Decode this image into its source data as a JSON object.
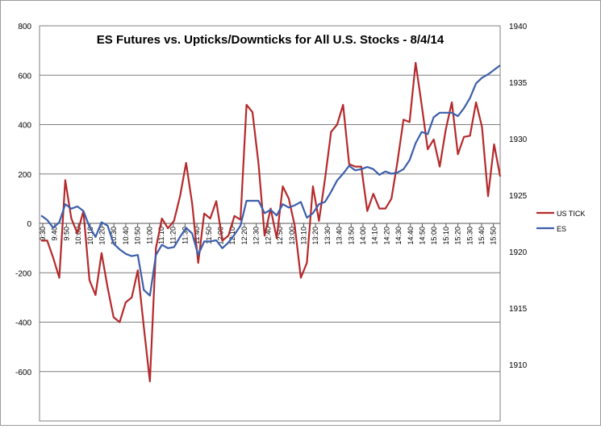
{
  "chart_data": {
    "type": "line",
    "title": "ES Futures vs. Upticks/Downticks for All U.S. Stocks - 8/4/14",
    "xlabel": "",
    "ylabel": "",
    "ylabel_right": "",
    "legend_position": "right",
    "grid": "horizontal",
    "y_left": {
      "min": -800,
      "max": 800,
      "step": 200
    },
    "y_right": {
      "min": 1905,
      "max": 1940,
      "step": 5
    },
    "y_left_ticks": [
      "800",
      "600",
      "400",
      "200",
      "0",
      "-200",
      "-400",
      "-600"
    ],
    "y_right_ticks": [
      "1940",
      "1935",
      "1930",
      "1925",
      "1920",
      "1915",
      "1910"
    ],
    "x_ticks": [
      "9:30",
      "9:40",
      "9:50",
      "10:00",
      "10:10",
      "10:20",
      "10:30",
      "10:40",
      "10:50",
      "11:00",
      "11:10",
      "11:20",
      "11:30",
      "11:40",
      "11:50",
      "12:00",
      "12:10",
      "12:20",
      "12:30",
      "12:40",
      "12:50",
      "13:00",
      "13:10",
      "13:20",
      "13:30",
      "13:40",
      "13:50",
      "14:00",
      "14:10",
      "14:20",
      "14:30",
      "14:40",
      "14:50",
      "15:00",
      "15:10",
      "15:20",
      "15:30",
      "15:40",
      "15:50"
    ],
    "series": [
      {
        "name": "US TICK",
        "axis": "left",
        "color": "#b5292b",
        "values": [
          -70,
          -70,
          -140,
          -220,
          175,
          20,
          -40,
          50,
          -230,
          -290,
          -120,
          -260,
          -380,
          -400,
          -320,
          -300,
          -190,
          -420,
          -640,
          -100,
          20,
          -20,
          10,
          110,
          245,
          80,
          -160,
          40,
          20,
          90,
          -70,
          -50,
          30,
          15,
          480,
          450,
          240,
          -50,
          60,
          -60,
          150,
          100,
          -10,
          -220,
          -160,
          150,
          10,
          180,
          370,
          400,
          480,
          240,
          230,
          230,
          50,
          120,
          60,
          60,
          100,
          250,
          420,
          410,
          650,
          480,
          300,
          340,
          230,
          380,
          490,
          280,
          350,
          355,
          490,
          390,
          110,
          320,
          190
        ]
      },
      {
        "name": "ES",
        "axis": "right",
        "color": "#3b5eab",
        "values": [
          1923.2,
          1922.8,
          1922.1,
          1922.6,
          1924.2,
          1923.8,
          1924.0,
          1923.6,
          1922.2,
          1921.3,
          1922.6,
          1922.3,
          1920.7,
          1920.2,
          1919.8,
          1919.6,
          1919.7,
          1916.6,
          1916.1,
          1919.7,
          1920.6,
          1920.3,
          1920.4,
          1921.3,
          1922.1,
          1921.6,
          1919.7,
          1920.9,
          1920.9,
          1921.0,
          1920.3,
          1920.8,
          1921.5,
          1922.3,
          1924.5,
          1924.5,
          1924.5,
          1923.4,
          1923.7,
          1923.2,
          1924.2,
          1923.9,
          1924.1,
          1924.4,
          1923.0,
          1923.4,
          1924.2,
          1924.4,
          1925.3,
          1926.3,
          1926.9,
          1927.6,
          1927.2,
          1927.3,
          1927.5,
          1927.3,
          1926.8,
          1927.1,
          1926.9,
          1927.0,
          1927.3,
          1928.1,
          1929.6,
          1930.6,
          1930.4,
          1931.9,
          1932.3,
          1932.3,
          1932.3,
          1932.0,
          1932.7,
          1933.6,
          1934.9,
          1935.4,
          1935.7,
          1936.1,
          1936.5
        ]
      }
    ]
  }
}
